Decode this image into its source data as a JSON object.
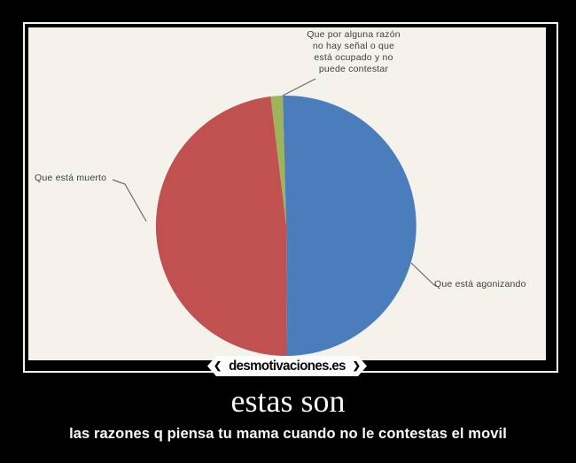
{
  "page": {
    "background_color": "#000000",
    "frame_border_color": "#f5f5f5",
    "photo_background_color": "#f4f2ea"
  },
  "watermark": {
    "label": "desmotivaciones.es",
    "left_chevron": "❮",
    "right_chevron": "❯"
  },
  "caption": {
    "title": "estas son",
    "subtitle": "las razones q piensa tu mama cuando no le contestas el movil"
  },
  "chart_data": {
    "type": "pie",
    "title": "",
    "legend": "none",
    "labels_position": "callouts-with-leader-lines",
    "start_angle_deg": -6.9,
    "direction": "clockwise",
    "slices": [
      {
        "label": "Que por alguna razón no hay señal o que está ocupado y no puede contestar",
        "value": 1.5,
        "color": "#9db45a"
      },
      {
        "label": "Que está agonizando",
        "value": 50.3,
        "color": "#4b7cbc"
      },
      {
        "label": "Que está muerto",
        "value": 48.2,
        "color": "#c05150"
      }
    ],
    "callouts": {
      "razon_lines": [
        "Que por alguna razón",
        "no hay señal o que",
        "está ocupado y no",
        "puede contestar"
      ],
      "muerto": "Que está muerto",
      "agonizando": "Que está agonizando"
    },
    "leader_line_color": "#6a6a6a"
  }
}
